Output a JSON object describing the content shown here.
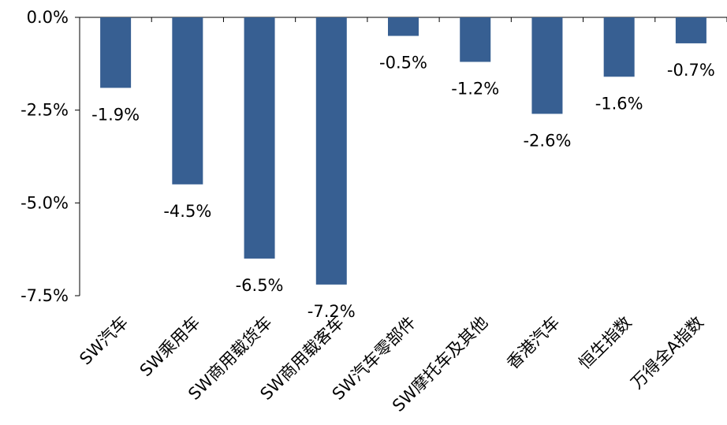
{
  "chart_data": {
    "type": "bar",
    "categories": [
      "SW汽车",
      "SW乘用车",
      "SW商用载货车",
      "SW商用载客车",
      "SW汽车零部件",
      "SW摩托车及其他",
      "香港汽车",
      "恒生指数",
      "万得全A指数"
    ],
    "values": [
      -1.9,
      -4.5,
      -6.5,
      -7.2,
      -0.5,
      -1.2,
      -2.6,
      -1.6,
      -0.7
    ],
    "value_labels": [
      "-1.9%",
      "-4.5%",
      "-6.5%",
      "-7.2%",
      "-0.5%",
      "-1.2%",
      "-2.6%",
      "-1.6%",
      "-0.7%"
    ],
    "y_ticks": [
      0,
      -2.5,
      -5.0,
      -7.5
    ],
    "y_tick_labels": [
      "0.0%",
      "-2.5%",
      "-5.0%",
      "-7.5%"
    ],
    "ylim": [
      -7.5,
      0
    ],
    "grid": false,
    "legend": "none",
    "colors": {
      "bar": "#375F92",
      "axis": "#000000"
    },
    "title": "",
    "xlabel": "",
    "ylabel": ""
  }
}
